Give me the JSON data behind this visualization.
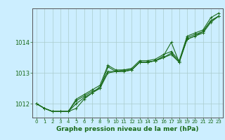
{
  "bg_color": "#cceeff",
  "grid_color": "#aacccc",
  "line_color": "#1a6b1a",
  "xlabel": "Graphe pression niveau de la mer (hPa)",
  "ylim": [
    1011.55,
    1015.1
  ],
  "xlim": [
    -0.5,
    23.5
  ],
  "yticks": [
    1012,
    1013,
    1014
  ],
  "xticks": [
    0,
    1,
    2,
    3,
    4,
    5,
    6,
    7,
    8,
    9,
    10,
    11,
    12,
    13,
    14,
    15,
    16,
    17,
    18,
    19,
    20,
    21,
    22,
    23
  ],
  "series": [
    [
      1012.0,
      1011.85,
      1011.75,
      1011.75,
      1011.75,
      1011.85,
      1012.15,
      1012.35,
      1012.55,
      1013.05,
      1013.05,
      1013.05,
      1013.1,
      1013.35,
      1013.35,
      1013.4,
      1013.5,
      1013.6,
      1013.35,
      1014.1,
      1014.2,
      1014.3,
      1014.65,
      1014.85
    ],
    [
      1012.0,
      1011.85,
      1011.75,
      1011.75,
      1011.75,
      1012.0,
      1012.2,
      1012.35,
      1012.5,
      1013.0,
      1013.05,
      1013.1,
      1013.1,
      1013.35,
      1013.35,
      1013.4,
      1013.5,
      1013.65,
      1013.35,
      1014.1,
      1014.2,
      1014.35,
      1014.7,
      1014.85
    ],
    [
      1012.0,
      1011.85,
      1011.75,
      1011.75,
      1011.75,
      1012.1,
      1012.25,
      1012.4,
      1012.5,
      1013.2,
      1013.05,
      1013.05,
      1013.1,
      1013.35,
      1013.35,
      1013.4,
      1013.55,
      1014.0,
      1013.35,
      1014.15,
      1014.25,
      1014.35,
      1014.7,
      1014.85
    ],
    [
      1012.0,
      1011.85,
      1011.75,
      1011.75,
      1011.75,
      1012.15,
      1012.3,
      1012.45,
      1012.6,
      1013.25,
      1013.1,
      1013.1,
      1013.15,
      1013.4,
      1013.4,
      1013.45,
      1013.6,
      1013.7,
      1013.4,
      1014.2,
      1014.3,
      1014.4,
      1014.8,
      1014.95
    ]
  ]
}
